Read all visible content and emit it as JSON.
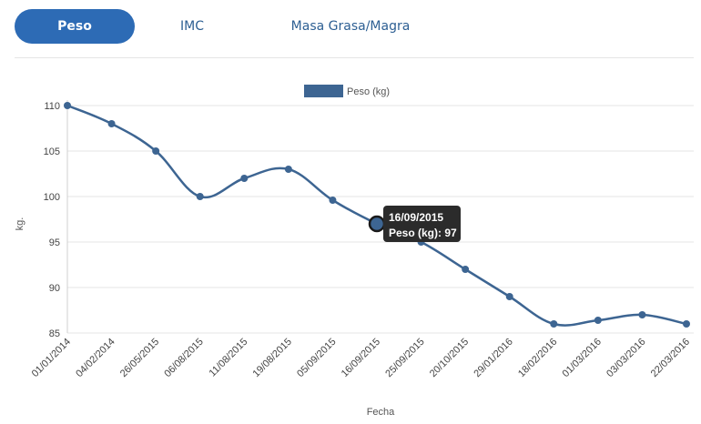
{
  "tabs": [
    {
      "label": "Peso",
      "active": true
    },
    {
      "label": "IMC",
      "active": false
    },
    {
      "label": "Masa Grasa/Magra",
      "active": false
    }
  ],
  "colors": {
    "accent": "#2d6bb5",
    "series": "#3d6592",
    "tooltip_bg": "#2b2b2b"
  },
  "tooltip": {
    "date": "16/09/2015",
    "text": "Peso (kg): 97"
  },
  "chart_data": {
    "type": "line",
    "legend": {
      "label": "Peso (kg)",
      "position": "top-center"
    },
    "xlabel": "Fecha",
    "ylabel": "kg.",
    "ylim": [
      85,
      110
    ],
    "yticks": [
      85,
      90,
      95,
      100,
      105,
      110
    ],
    "grid": true,
    "categories": [
      "01/01/2014",
      "04/02/2014",
      "26/05/2015",
      "06/08/2015",
      "11/08/2015",
      "19/08/2015",
      "05/09/2015",
      "16/09/2015",
      "25/09/2015",
      "20/10/2015",
      "29/01/2016",
      "18/02/2016",
      "01/03/2016",
      "03/03/2016",
      "22/03/2016"
    ],
    "series": [
      {
        "name": "Peso (kg)",
        "values": [
          110,
          108,
          105,
          100,
          102,
          103,
          99.6,
          97,
          95,
          92,
          89,
          86,
          86.4,
          87,
          86
        ]
      }
    ],
    "highlighted_index": 7
  }
}
